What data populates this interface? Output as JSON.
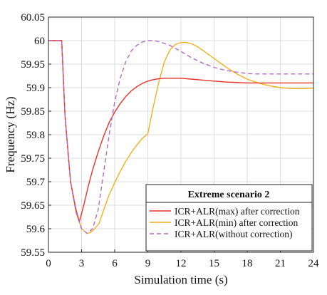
{
  "chart_data": {
    "type": "line",
    "xlabel": "Simulation time (s)",
    "ylabel": "Frequency (Hz)",
    "xlim": [
      0,
      24
    ],
    "ylim": [
      59.55,
      60.05
    ],
    "xticks": [
      0,
      3,
      6,
      9,
      12,
      15,
      18,
      21,
      24
    ],
    "yticks": [
      59.55,
      59.6,
      59.65,
      59.7,
      59.75,
      59.8,
      59.85,
      59.9,
      59.95,
      60,
      60.05
    ],
    "xtick_labels": [
      "0",
      "3",
      "6",
      "9",
      "12",
      "15",
      "18",
      "21",
      "24"
    ],
    "ytick_labels": [
      "59.55",
      "59.6",
      "59.65",
      "59.7",
      "59.75",
      "59.8",
      "59.85",
      "59.9",
      "59.95",
      "60",
      "60.05"
    ],
    "grid": true,
    "legend": {
      "title": "Extreme scenario 2",
      "position": "bottom-right"
    },
    "series": [
      {
        "name": "ICR+ALR(max) after correction",
        "color": "#e8312a",
        "style": "solid",
        "x": [
          0,
          1,
          1.2,
          1.5,
          2,
          2.5,
          2.8,
          3.2,
          3.6,
          4.0,
          4.5,
          5,
          5.5,
          6,
          6.5,
          7,
          7.5,
          8,
          8.5,
          9,
          9.5,
          10,
          10.5,
          11,
          12,
          13,
          14,
          15,
          16,
          17,
          18,
          20,
          22,
          24
        ],
        "y": [
          60,
          60,
          60,
          59.84,
          59.7,
          59.64,
          59.615,
          59.65,
          59.69,
          59.725,
          59.763,
          59.797,
          59.826,
          59.848,
          59.866,
          59.881,
          59.893,
          59.902,
          59.909,
          59.914,
          59.917,
          59.919,
          59.92,
          59.92,
          59.92,
          59.918,
          59.916,
          59.914,
          59.912,
          59.911,
          59.91,
          59.91,
          59.91,
          59.91
        ]
      },
      {
        "name": "ICR+ALR(min) after correction",
        "color": "#f2b01e",
        "style": "solid",
        "x": [
          0,
          1,
          1.2,
          1.5,
          2,
          2.5,
          3,
          3.5,
          3.8,
          4.2,
          4.6,
          5,
          5.5,
          6,
          6.5,
          7,
          7.5,
          8,
          8.5,
          9,
          9.5,
          10,
          10.5,
          11,
          11.5,
          12,
          12.5,
          13,
          13.5,
          14,
          15,
          16,
          17,
          18,
          19,
          20,
          21,
          22,
          23,
          24
        ],
        "y": [
          60,
          60,
          60,
          59.84,
          59.7,
          59.635,
          59.6,
          59.59,
          59.592,
          59.6,
          59.612,
          59.64,
          59.672,
          59.698,
          59.722,
          59.743,
          59.762,
          59.778,
          59.792,
          59.802,
          59.86,
          59.912,
          59.955,
          59.98,
          59.992,
          59.996,
          59.996,
          59.993,
          59.987,
          59.979,
          59.962,
          59.945,
          59.93,
          59.918,
          59.91,
          59.904,
          59.9,
          59.898,
          59.898,
          59.899
        ]
      },
      {
        "name": "ICR+ALR(without correction)",
        "color": "#b56bc4",
        "style": "dashed",
        "x": [
          0,
          1,
          1.2,
          1.5,
          2,
          2.5,
          3,
          3.5,
          4.0,
          4.5,
          5,
          5.5,
          6,
          6.5,
          7,
          7.5,
          8,
          8.5,
          9,
          9.5,
          10,
          11,
          12,
          13,
          14,
          15,
          16,
          17,
          18,
          19,
          20,
          21,
          22,
          23,
          24
        ],
        "y": [
          60,
          60,
          60,
          59.84,
          59.7,
          59.635,
          59.6,
          59.59,
          59.6,
          59.64,
          59.72,
          59.8,
          59.87,
          59.92,
          59.955,
          59.978,
          59.99,
          59.997,
          60,
          60,
          59.998,
          59.99,
          59.977,
          59.963,
          59.952,
          59.943,
          59.937,
          59.933,
          59.93,
          59.929,
          59.929,
          59.929,
          59.929,
          59.929,
          59.929
        ]
      }
    ]
  }
}
